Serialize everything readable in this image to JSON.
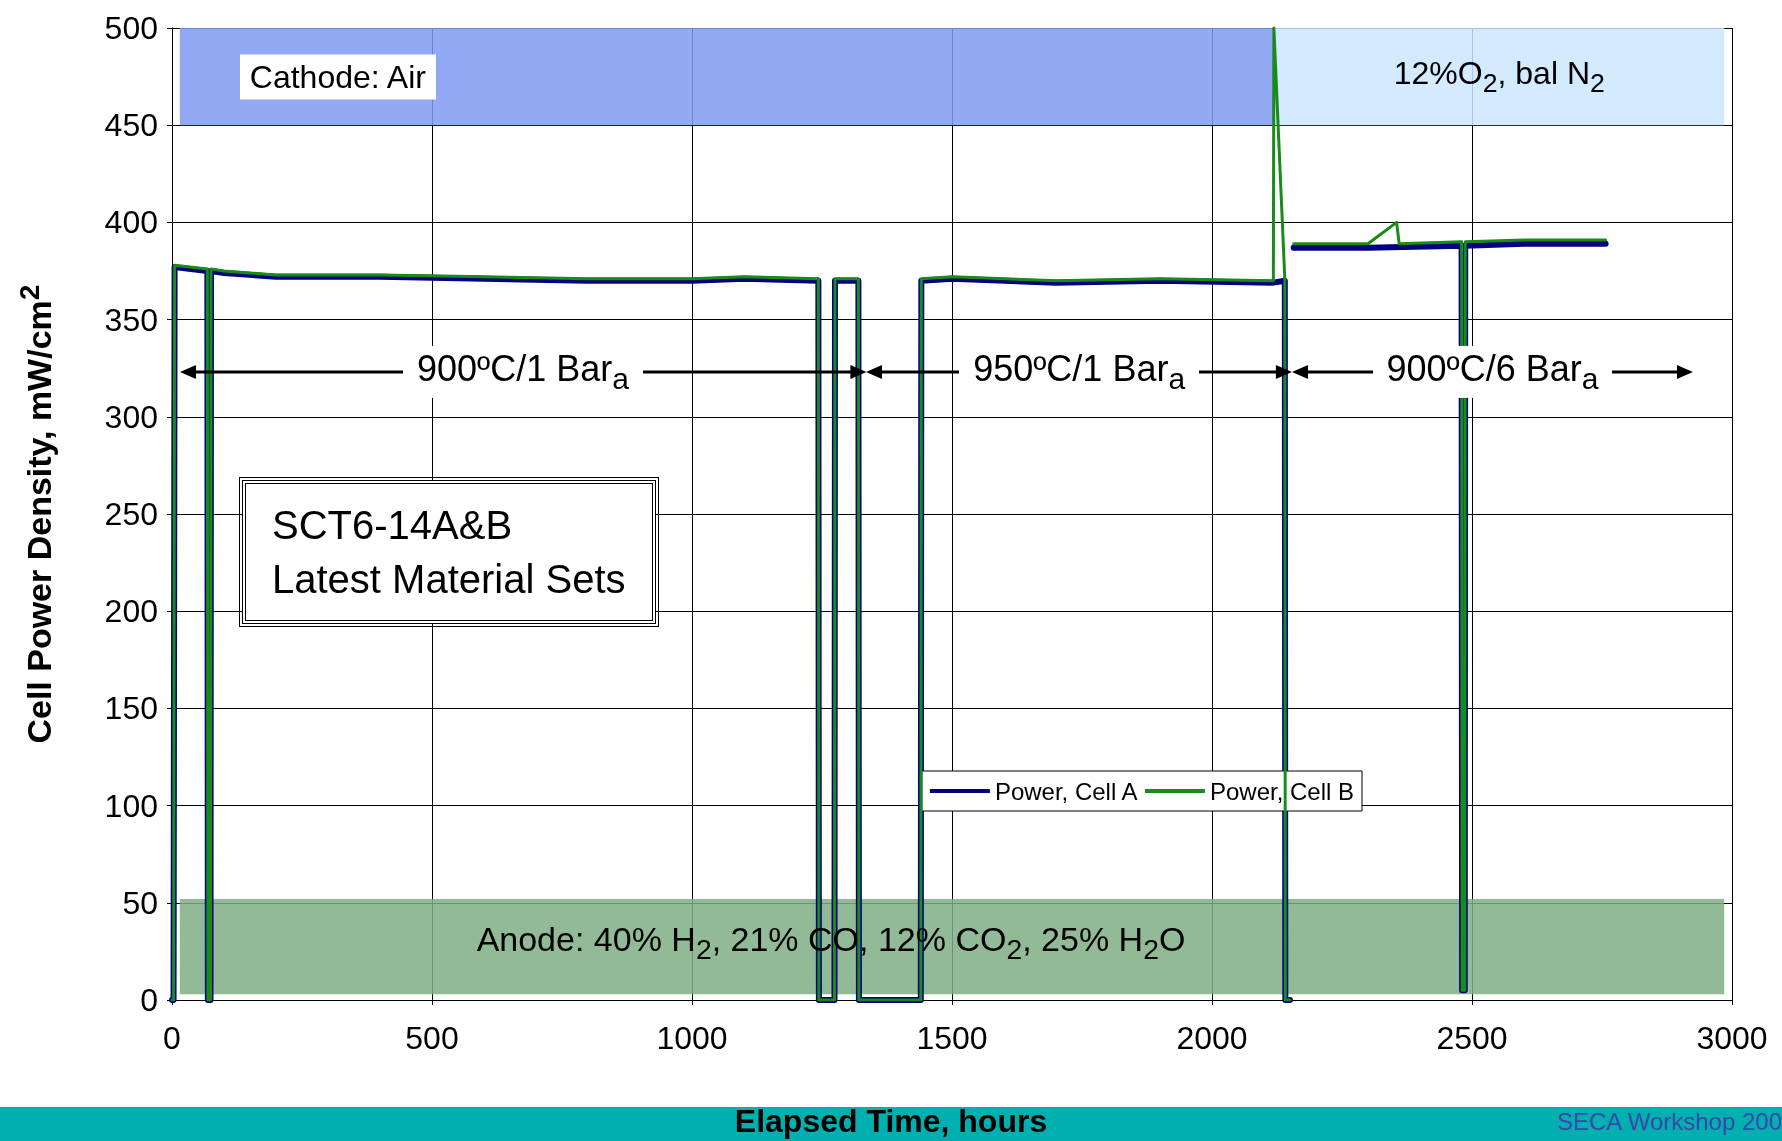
{
  "chart_data": {
    "type": "line",
    "xlabel": "Elapsed Time, hours",
    "ylabel": "Cell Power Density, mW/cm$^{2}$",
    "xlim": [
      0,
      3000
    ],
    "xticks": [
      0,
      500,
      1000,
      1500,
      2000,
      2500,
      3000
    ],
    "ylim": [
      0,
      500
    ],
    "yticks": [
      0,
      50,
      100,
      150,
      200,
      250,
      300,
      350,
      400,
      450,
      500
    ],
    "grid": true,
    "legend": "bottom right",
    "marker": "none",
    "line_style": "solid",
    "series": [
      {
        "name": "Power, Cell A",
        "color": "#000080",
        "x": [
          0,
          3,
          5,
          68,
          69,
          74,
          75,
          100,
          200,
          400,
          600,
          800,
          1000,
          1100,
          1243,
          1244,
          1274,
          1275,
          1320,
          1321,
          1440,
          1441,
          1500,
          1700,
          1900,
          2118,
          2119,
          2140,
          2141,
          2150,
          2156,
          2157,
          2300,
          2480,
          2481,
          2486,
          2487,
          2600,
          2757
        ],
        "values": [
          0,
          0,
          377,
          375,
          0,
          0,
          375,
          374,
          372,
          372,
          371,
          370,
          370,
          371,
          370,
          0,
          0,
          370,
          370,
          0,
          0,
          370,
          371,
          369,
          370,
          369,
          369,
          370,
          0,
          0,
          null,
          387,
          387,
          388,
          5,
          5,
          388,
          389,
          389
        ]
      },
      {
        "name": "Power, Cell B",
        "color": "#1a8a1a",
        "x": [
          0,
          3,
          5,
          68,
          69,
          74,
          75,
          100,
          200,
          400,
          600,
          800,
          1000,
          1100,
          1243,
          1244,
          1274,
          1275,
          1320,
          1321,
          1440,
          1441,
          1500,
          1700,
          1900,
          2118,
          2119,
          2140,
          2141,
          2150,
          2156,
          2157,
          2300,
          2355,
          2360,
          2480,
          2481,
          2486,
          2487,
          2600,
          2757
        ],
        "values": [
          0,
          0,
          378,
          376,
          0,
          0,
          376,
          375,
          373,
          373,
          372,
          371,
          371,
          372,
          371,
          0,
          0,
          371,
          371,
          0,
          0,
          371,
          372,
          370,
          371,
          370,
          500,
          371,
          0,
          0,
          null,
          389,
          389,
          400,
          389,
          390,
          5,
          5,
          390,
          391,
          391
        ]
      }
    ],
    "bands": [
      {
        "axis": "x",
        "from": 15,
        "to": 2120,
        "label": "Cathode: Air",
        "color": "#7f9bf2"
      },
      {
        "axis": "x",
        "from": 2120,
        "to": 2985,
        "label": "12%O$_{2}$, bal N$_{2}$",
        "color": "#cde6ff"
      },
      {
        "axis": "y",
        "from": 3,
        "to": 52,
        "label": "Anode: 40% H$_{2}$, 21% CO, 12% CO$_{2}$, 25% H$_{2}$O",
        "color": "#7fae85"
      }
    ],
    "annotations": [
      "900ºC/1 Bar$_{a}$",
      "950ºC/1 Bar$_{a}$",
      "900ºC/6 Bar$_{a}$",
      "SCT6-14A&B\nLatest Material Sets",
      "SECA Workshop 200"
    ]
  }
}
